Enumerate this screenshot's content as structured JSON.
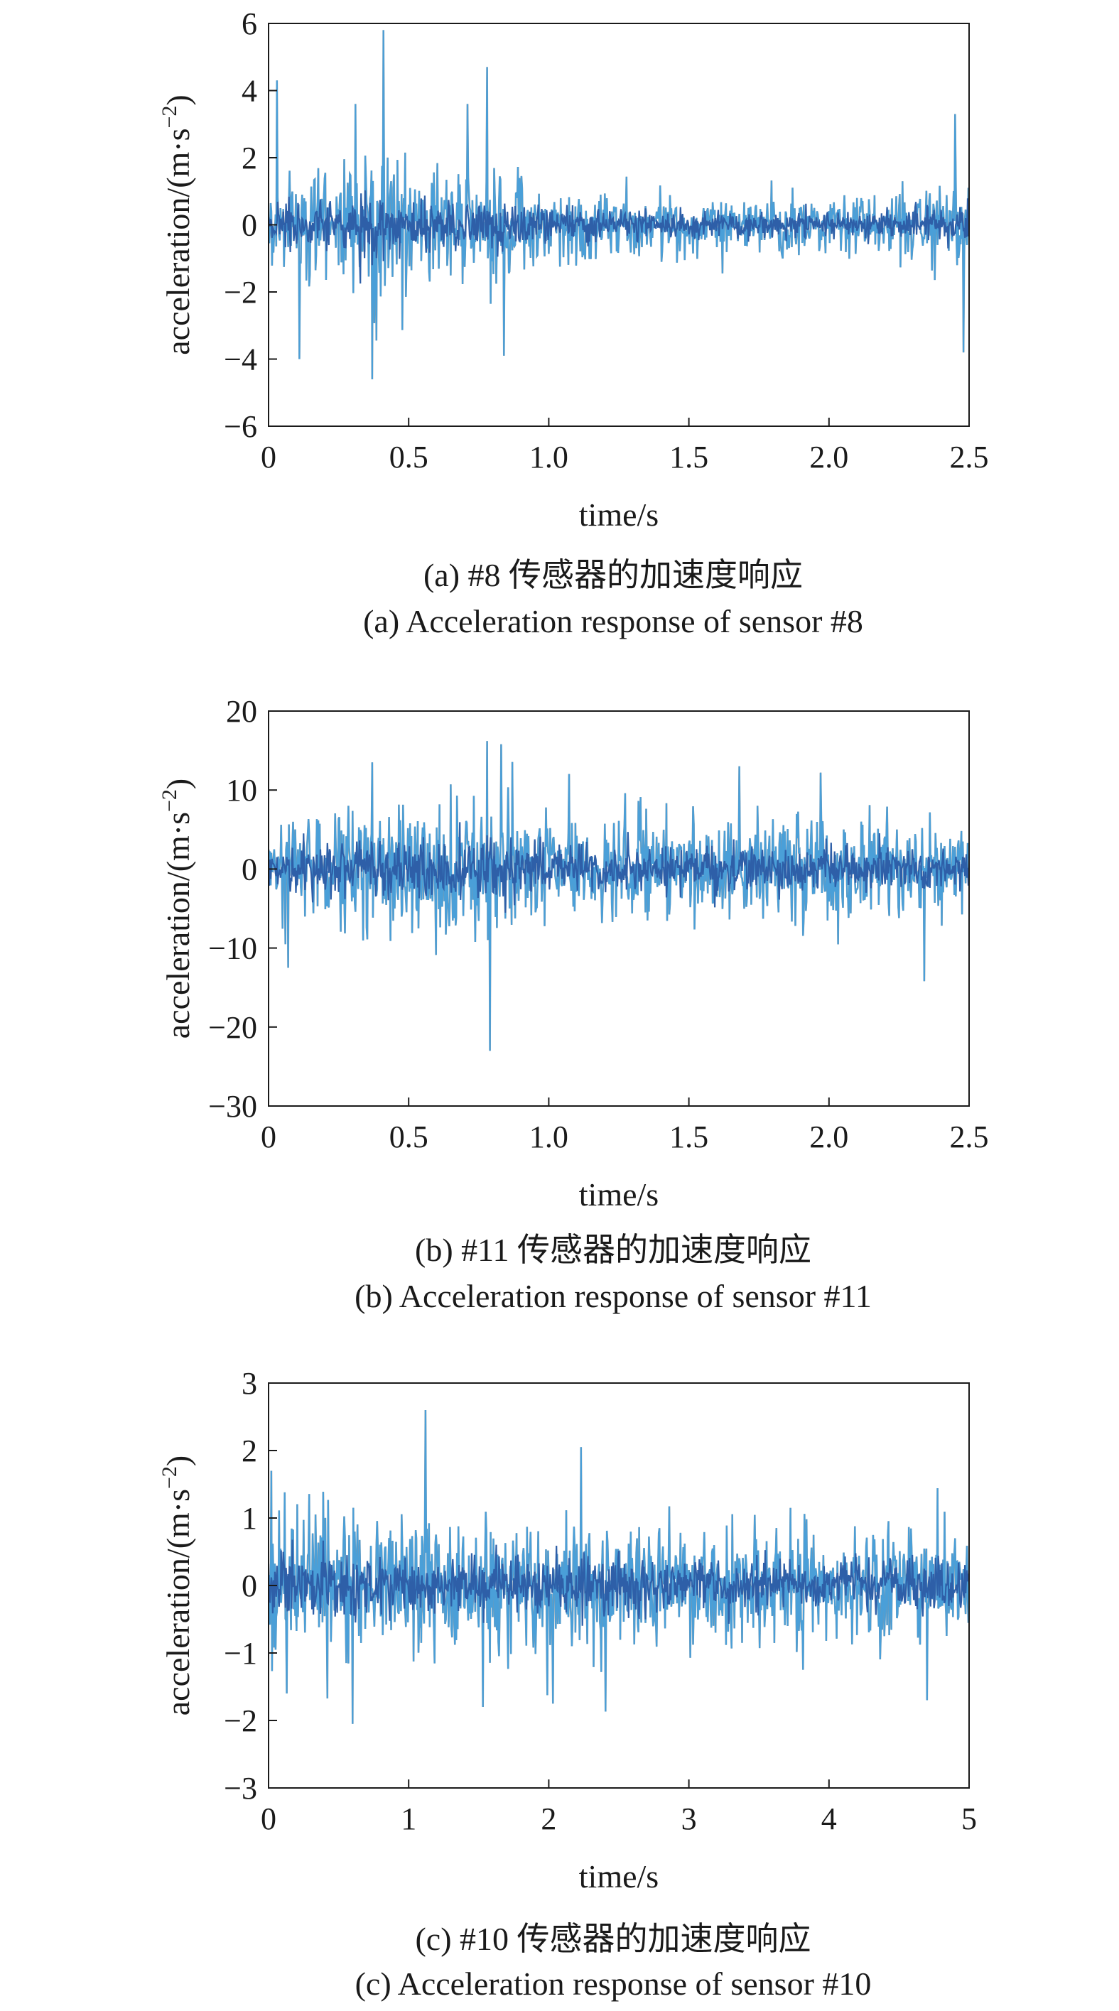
{
  "colors": {
    "signal_dark": "#2e5fa8",
    "signal_light": "#4a9fd8",
    "signal_gray": "#8a8a8a",
    "axis": "#1a1a1a"
  },
  "chart_data": [
    {
      "type": "line",
      "xlabel": "time/s",
      "ylabel_main": "acceleration/(m·s",
      "ylabel_exp": "−2",
      "ylabel_close": ")",
      "xlim": [
        0,
        2.5
      ],
      "ylim": [
        -6,
        6
      ],
      "xticks": [
        0,
        0.5,
        1.0,
        1.5,
        2.0,
        2.5
      ],
      "xtick_labels": [
        "0",
        "0.5",
        "1.0",
        "1.5",
        "2.0",
        "2.5"
      ],
      "yticks": [
        -6,
        -4,
        -2,
        0,
        2,
        4,
        6
      ],
      "ytick_labels": [
        "−6",
        "−4",
        "−2",
        "0",
        "2",
        "4",
        "6"
      ],
      "caption_cn": "(a) #8 传感器的加速度响应",
      "caption_en": "(a) Acceleration response of sensor #8",
      "signal": {
        "samples": 1000,
        "seed": 8,
        "envelope": [
          [
            0,
            0.9
          ],
          [
            0.25,
            1.1
          ],
          [
            0.38,
            1.6
          ],
          [
            0.5,
            1.0
          ],
          [
            0.85,
            1.0
          ],
          [
            1.0,
            0.7
          ],
          [
            1.5,
            0.6
          ],
          [
            2.0,
            0.55
          ],
          [
            2.3,
            0.6
          ],
          [
            2.5,
            0.9
          ]
        ],
        "peaks": [
          [
            0.41,
            5.8
          ],
          [
            0.78,
            4.7
          ],
          [
            0.37,
            -4.6
          ],
          [
            0.84,
            -3.9
          ],
          [
            0.03,
            4.3
          ],
          [
            0.11,
            -4.0
          ],
          [
            2.48,
            -3.8
          ],
          [
            2.45,
            3.3
          ],
          [
            0.31,
            3.6
          ],
          [
            0.71,
            3.6
          ]
        ]
      }
    },
    {
      "type": "line",
      "xlabel": "time/s",
      "ylabel_main": "acceleration/(m·s",
      "ylabel_exp": "−2",
      "ylabel_close": ")",
      "xlim": [
        0,
        2.5
      ],
      "ylim": [
        -30,
        20
      ],
      "xticks": [
        0,
        0.5,
        1.0,
        1.5,
        2.0,
        2.5
      ],
      "xtick_labels": [
        "0",
        "0.5",
        "1.0",
        "1.5",
        "2.0",
        "2.5"
      ],
      "yticks": [
        -30,
        -20,
        -10,
        0,
        10,
        20
      ],
      "ytick_labels": [
        "−30",
        "−20",
        "−10",
        "0",
        "10",
        "20"
      ],
      "caption_cn": "(b) #11 传感器的加速度响应",
      "caption_en": "(b) Acceleration response of sensor #11",
      "signal": {
        "samples": 1000,
        "seed": 11,
        "envelope": [
          [
            0,
            4.0
          ],
          [
            0.4,
            5.0
          ],
          [
            0.8,
            6.0
          ],
          [
            1.0,
            4.0
          ],
          [
            1.5,
            4.0
          ],
          [
            2.0,
            4.5
          ],
          [
            2.5,
            3.5
          ]
        ],
        "peaks": [
          [
            0.79,
            -23.0
          ],
          [
            0.78,
            16.2
          ],
          [
            0.83,
            15.8
          ],
          [
            0.37,
            13.5
          ],
          [
            1.68,
            13.0
          ],
          [
            2.34,
            -14.2
          ],
          [
            1.97,
            12.2
          ],
          [
            0.07,
            -12.5
          ]
        ]
      }
    },
    {
      "type": "line",
      "xlabel": "time/s",
      "ylabel_main": "acceleration/(m·s",
      "ylabel_exp": "−2",
      "ylabel_close": ")",
      "xlim": [
        0,
        5
      ],
      "ylim": [
        -3,
        3
      ],
      "xticks": [
        0,
        1,
        2,
        3,
        4,
        5
      ],
      "xtick_labels": [
        "0",
        "1",
        "2",
        "3",
        "4",
        "5"
      ],
      "yticks": [
        -3,
        -2,
        -1,
        0,
        1,
        2,
        3
      ],
      "ytick_labels": [
        "−3",
        "−2",
        "−1",
        "0",
        "1",
        "2",
        "3"
      ],
      "caption_cn": "(c) #10 传感器的加速度响应",
      "caption_en": "(c) Acceleration response of sensor #10",
      "signal": {
        "samples": 1000,
        "seed": 10,
        "envelope": [
          [
            0,
            0.7
          ],
          [
            1.0,
            0.6
          ],
          [
            2.0,
            0.55
          ],
          [
            2.3,
            0.65
          ],
          [
            3.0,
            0.5
          ],
          [
            4.0,
            0.5
          ],
          [
            5.0,
            0.55
          ]
        ],
        "peaks": [
          [
            1.12,
            2.6
          ],
          [
            2.23,
            2.05
          ],
          [
            0.6,
            -2.05
          ],
          [
            0.02,
            1.7
          ],
          [
            2.03,
            -1.75
          ],
          [
            4.7,
            -1.7
          ],
          [
            0.13,
            -1.6
          ],
          [
            1.53,
            -1.8
          ]
        ]
      }
    }
  ]
}
